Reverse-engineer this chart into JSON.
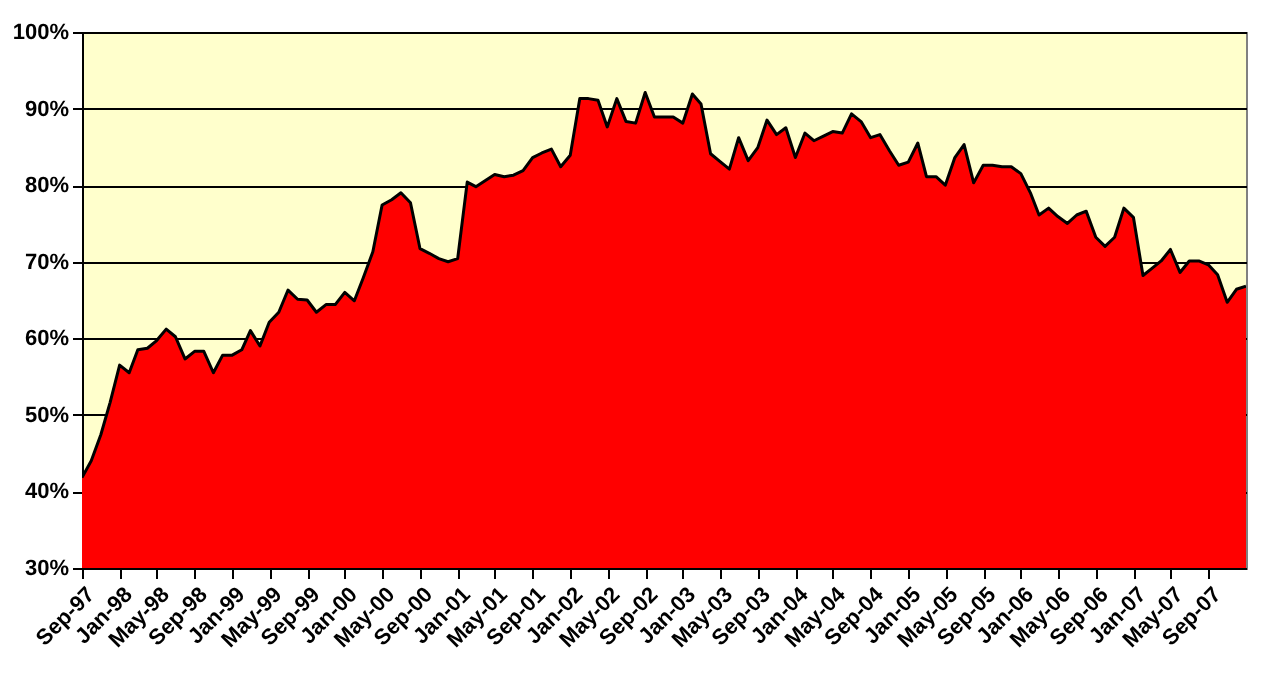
{
  "chart_data": {
    "type": "area",
    "x": [
      "1997-09",
      "1997-10",
      "1997-11",
      "1997-12",
      "1998-01",
      "1998-02",
      "1998-03",
      "1998-04",
      "1998-05",
      "1998-06",
      "1998-07",
      "1998-08",
      "1998-09",
      "1998-10",
      "1998-11",
      "1998-12",
      "1999-01",
      "1999-02",
      "1999-03",
      "1999-04",
      "1999-05",
      "1999-06",
      "1999-07",
      "1999-08",
      "1999-09",
      "1999-10",
      "1999-11",
      "1999-12",
      "2000-01",
      "2000-02",
      "2000-03",
      "2000-04",
      "2000-05",
      "2000-06",
      "2000-07",
      "2000-08",
      "2000-09",
      "2000-10",
      "2000-11",
      "2000-12",
      "2001-01",
      "2001-02",
      "2001-03",
      "2001-04",
      "2001-05",
      "2001-06",
      "2001-07",
      "2001-08",
      "2001-09",
      "2001-10",
      "2001-11",
      "2001-12",
      "2002-01",
      "2002-02",
      "2002-03",
      "2002-04",
      "2002-05",
      "2002-06",
      "2002-07",
      "2002-08",
      "2002-09",
      "2002-10",
      "2002-11",
      "2002-12",
      "2003-01",
      "2003-02",
      "2003-03",
      "2003-04",
      "2003-05",
      "2003-06",
      "2003-07",
      "2003-08",
      "2003-09",
      "2003-10",
      "2003-11",
      "2003-12",
      "2004-01",
      "2004-02",
      "2004-03",
      "2004-04",
      "2004-05",
      "2004-06",
      "2004-07",
      "2004-08",
      "2004-09",
      "2004-10",
      "2004-11",
      "2004-12",
      "2005-01",
      "2005-02",
      "2005-03",
      "2005-04",
      "2005-05",
      "2005-06",
      "2005-07",
      "2005-08",
      "2005-09",
      "2005-10",
      "2005-11",
      "2005-12",
      "2006-01",
      "2006-02",
      "2006-03",
      "2006-04",
      "2006-05",
      "2006-06",
      "2006-07",
      "2006-08",
      "2006-09",
      "2006-10",
      "2006-11",
      "2006-12",
      "2007-01",
      "2007-02",
      "2007-03",
      "2007-04",
      "2007-05",
      "2007-06",
      "2007-07",
      "2007-08",
      "2007-09",
      "2007-10",
      "2007-11",
      "2007-12",
      "2008-01"
    ],
    "series": [
      {
        "color": "#ff0000",
        "values": [
          41.8,
          44,
          47.4,
          51.6,
          56.5,
          55.5,
          58.5,
          58.7,
          59.7,
          61.2,
          60.2,
          57.3,
          58.3,
          58.3,
          55.5,
          57.8,
          57.8,
          58.5,
          61,
          59,
          62.1,
          63.4,
          66.3,
          65.1,
          65,
          63.4,
          64.4,
          64.4,
          66,
          64.9,
          67.9,
          71.3,
          77.4,
          78.1,
          79,
          77.7,
          71.7,
          71.1,
          70.4,
          70,
          70.4,
          80.4,
          79.8,
          80.6,
          81.4,
          81.1,
          81.3,
          81.9,
          83.6,
          84.2,
          84.7,
          82.4,
          83.9,
          91.3,
          91.3,
          91.1,
          87.6,
          91.3,
          88.3,
          88.1,
          92.1,
          88.9,
          88.9,
          88.9,
          88.1,
          91.9,
          90.6,
          84.1,
          83.1,
          82.1,
          86.2,
          83.2,
          84.9,
          88.5,
          86.6,
          87.5,
          83.6,
          86.8,
          85.8,
          86.4,
          87,
          86.8,
          89.3,
          88.3,
          86.2,
          86.6,
          84.5,
          82.6,
          83,
          85.5,
          81.1,
          81.1,
          80,
          83.6,
          85.3,
          80.3,
          82.6,
          82.6,
          82.4,
          82.4,
          81.5,
          79,
          76.1,
          77,
          75.9,
          75,
          76.1,
          76.6,
          73.2,
          72,
          73.2,
          77,
          75.8,
          68.2,
          69.1,
          70.1,
          71.6,
          68.6,
          70.1,
          70.1,
          69.6,
          68.3,
          64.7,
          66.4,
          66.8
        ]
      }
    ],
    "xlim": [
      "1997-09",
      "2008-01"
    ],
    "xticks": [
      {
        "value": "1997-09",
        "label": "Sep-97"
      },
      {
        "value": "1998-01",
        "label": "Jan-98"
      },
      {
        "value": "1998-05",
        "label": "May-98"
      },
      {
        "value": "1998-09",
        "label": "Sep-98"
      },
      {
        "value": "1999-01",
        "label": "Jan-99"
      },
      {
        "value": "1999-05",
        "label": "May-99"
      },
      {
        "value": "1999-09",
        "label": "Sep-99"
      },
      {
        "value": "2000-01",
        "label": "Jan-00"
      },
      {
        "value": "2000-05",
        "label": "May-00"
      },
      {
        "value": "2000-09",
        "label": "Sep-00"
      },
      {
        "value": "2001-01",
        "label": "Jan-01"
      },
      {
        "value": "2001-05",
        "label": "May-01"
      },
      {
        "value": "2001-09",
        "label": "Sep-01"
      },
      {
        "value": "2002-01",
        "label": "Jan-02"
      },
      {
        "value": "2002-05",
        "label": "May-02"
      },
      {
        "value": "2002-09",
        "label": "Sep-02"
      },
      {
        "value": "2003-01",
        "label": "Jan-03"
      },
      {
        "value": "2003-05",
        "label": "May-03"
      },
      {
        "value": "2003-09",
        "label": "Sep-03"
      },
      {
        "value": "2004-01",
        "label": "Jan-04"
      },
      {
        "value": "2004-05",
        "label": "May-04"
      },
      {
        "value": "2004-09",
        "label": "Sep-04"
      },
      {
        "value": "2005-01",
        "label": "Jan-05"
      },
      {
        "value": "2005-05",
        "label": "May-05"
      },
      {
        "value": "2005-09",
        "label": "Sep-05"
      },
      {
        "value": "2006-01",
        "label": "Jan-06"
      },
      {
        "value": "2006-05",
        "label": "May-06"
      },
      {
        "value": "2006-09",
        "label": "Sep-06"
      },
      {
        "value": "2007-01",
        "label": "Jan-07"
      },
      {
        "value": "2007-05",
        "label": "May-07"
      },
      {
        "value": "2007-09",
        "label": "Sep-07"
      }
    ],
    "ylim": [
      30,
      100
    ],
    "yticks": [
      {
        "value": 30,
        "label": "30%"
      },
      {
        "value": 40,
        "label": "40%"
      },
      {
        "value": 50,
        "label": "50%"
      },
      {
        "value": 60,
        "label": "60%"
      },
      {
        "value": 70,
        "label": "70%"
      },
      {
        "value": 80,
        "label": "80%"
      },
      {
        "value": 90,
        "label": "90%"
      },
      {
        "value": 100,
        "label": "100%"
      }
    ],
    "grid": "y"
  }
}
